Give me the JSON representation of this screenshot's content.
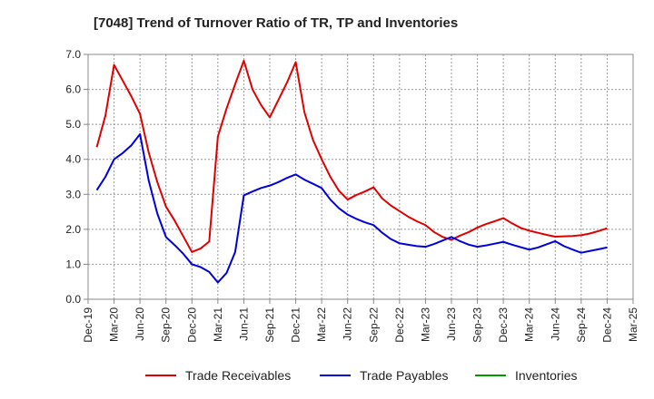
{
  "chart_data": {
    "type": "line",
    "title": "[7048]  Trend of Turnover Ratio of TR, TP and Inventories",
    "xlabel": "",
    "ylabel": "",
    "ylim": [
      0,
      7.0
    ],
    "yticks": [
      "0.0",
      "1.0",
      "2.0",
      "3.0",
      "4.0",
      "5.0",
      "6.0",
      "7.0"
    ],
    "x_ticks": [
      "Dec-19",
      "Mar-20",
      "Jun-20",
      "Sep-20",
      "Dec-20",
      "Mar-21",
      "Jun-21",
      "Sep-21",
      "Dec-21",
      "Mar-22",
      "Jun-22",
      "Sep-22",
      "Dec-22",
      "Mar-23",
      "Jun-23",
      "Sep-23",
      "Dec-23",
      "Mar-24",
      "Jun-24",
      "Sep-24",
      "Dec-24",
      "Mar-25"
    ],
    "grid": true,
    "legend_position": "bottom",
    "series": [
      {
        "name": "Trade Receivables",
        "color": "#e00000",
        "x": [
          "Jan-20",
          "Feb-20",
          "Mar-20",
          "Apr-20",
          "May-20",
          "Jun-20",
          "Jul-20",
          "Aug-20",
          "Sep-20",
          "Oct-20",
          "Nov-20",
          "Dec-20",
          "Jan-21",
          "Feb-21",
          "Mar-21",
          "Apr-21",
          "May-21",
          "Jun-21",
          "Jul-21",
          "Aug-21",
          "Sep-21",
          "Oct-21",
          "Nov-21",
          "Dec-21",
          "Jan-22",
          "Feb-22",
          "Mar-22",
          "Apr-22",
          "May-22",
          "Jun-22",
          "Jul-22",
          "Aug-22",
          "Sep-22",
          "Oct-22",
          "Nov-22",
          "Dec-22",
          "Jan-23",
          "Feb-23",
          "Mar-23",
          "Apr-23",
          "May-23",
          "Jun-23",
          "Jul-23",
          "Aug-23",
          "Sep-23",
          "Oct-23",
          "Nov-23",
          "Dec-23",
          "Jan-24",
          "Feb-24",
          "Mar-24",
          "Apr-24",
          "May-24",
          "Jun-24",
          "Jul-24",
          "Aug-24",
          "Sep-24",
          "Oct-24",
          "Nov-24",
          "Dec-24"
        ],
        "values": [
          4.35,
          5.25,
          6.7,
          6.25,
          5.8,
          5.3,
          4.2,
          3.35,
          2.65,
          2.25,
          1.8,
          1.35,
          1.45,
          1.65,
          4.65,
          5.45,
          6.15,
          6.82,
          6.0,
          5.55,
          5.2,
          5.7,
          6.2,
          6.78,
          5.35,
          4.55,
          4.0,
          3.5,
          3.1,
          2.85,
          2.98,
          3.08,
          3.2,
          2.88,
          2.68,
          2.52,
          2.36,
          2.23,
          2.12,
          1.92,
          1.78,
          1.7,
          1.82,
          1.92,
          2.05,
          2.15,
          2.23,
          2.32,
          2.17,
          2.04,
          1.96,
          1.9,
          1.84,
          1.79,
          1.8,
          1.81,
          1.83,
          1.88,
          1.95,
          2.03
        ]
      },
      {
        "name": "Trade Payables",
        "color": "#0000dd",
        "x": [
          "Jan-20",
          "Feb-20",
          "Mar-20",
          "Apr-20",
          "May-20",
          "Jun-20",
          "Jul-20",
          "Aug-20",
          "Sep-20",
          "Oct-20",
          "Nov-20",
          "Dec-20",
          "Jan-21",
          "Feb-21",
          "Mar-21",
          "Apr-21",
          "May-21",
          "Jun-21",
          "Jul-21",
          "Aug-21",
          "Sep-21",
          "Oct-21",
          "Nov-21",
          "Dec-21",
          "Jan-22",
          "Feb-22",
          "Mar-22",
          "Apr-22",
          "May-22",
          "Jun-22",
          "Jul-22",
          "Aug-22",
          "Sep-22",
          "Oct-22",
          "Nov-22",
          "Dec-22",
          "Jan-23",
          "Feb-23",
          "Mar-23",
          "Apr-23",
          "May-23",
          "Jun-23",
          "Jul-23",
          "Aug-23",
          "Sep-23",
          "Oct-23",
          "Nov-23",
          "Dec-23",
          "Jan-24",
          "Feb-24",
          "Mar-24",
          "Apr-24",
          "May-24",
          "Jun-24",
          "Jul-24",
          "Aug-24",
          "Sep-24",
          "Oct-24",
          "Nov-24",
          "Dec-24"
        ],
        "values": [
          3.12,
          3.5,
          4.0,
          4.18,
          4.4,
          4.72,
          3.4,
          2.45,
          1.78,
          1.55,
          1.3,
          1.0,
          0.92,
          0.78,
          0.48,
          0.75,
          1.35,
          2.97,
          3.08,
          3.18,
          3.25,
          3.35,
          3.47,
          3.57,
          3.42,
          3.3,
          3.18,
          2.85,
          2.6,
          2.42,
          2.3,
          2.2,
          2.12,
          1.9,
          1.72,
          1.6,
          1.56,
          1.52,
          1.5,
          1.58,
          1.68,
          1.78,
          1.66,
          1.56,
          1.5,
          1.54,
          1.59,
          1.64,
          1.56,
          1.49,
          1.42,
          1.48,
          1.57,
          1.66,
          1.52,
          1.42,
          1.33,
          1.38,
          1.43,
          1.48
        ]
      },
      {
        "name": "Inventories",
        "color": "#009900",
        "x": [],
        "values": []
      }
    ]
  }
}
